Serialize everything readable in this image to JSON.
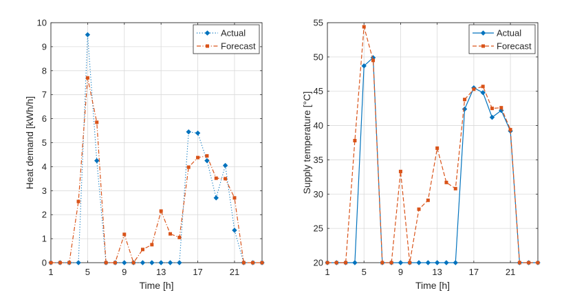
{
  "chart_data": [
    {
      "type": "line",
      "xlabel": "Time [h]",
      "ylabel": "Heat demand [kWh/h]",
      "xlim": [
        1,
        24
      ],
      "ylim": [
        0,
        10
      ],
      "xticks": [
        1,
        5,
        9,
        13,
        17,
        21
      ],
      "yticks": [
        0,
        1,
        2,
        3,
        4,
        5,
        6,
        7,
        8,
        9,
        10
      ],
      "grid": true,
      "legend": "top-right",
      "x": [
        1,
        2,
        3,
        4,
        5,
        6,
        7,
        8,
        9,
        10,
        11,
        12,
        13,
        14,
        15,
        16,
        17,
        18,
        19,
        20,
        21,
        22,
        23,
        24
      ],
      "series": [
        {
          "name": "Actual",
          "color": "#0072BD",
          "line_style": "dotted",
          "marker": "diamond",
          "values": [
            0,
            0,
            0,
            0,
            9.5,
            4.25,
            0,
            0,
            0,
            0,
            0,
            0,
            0,
            0,
            0,
            5.45,
            5.4,
            4.25,
            2.7,
            4.05,
            1.35,
            0,
            0,
            0
          ]
        },
        {
          "name": "Forecast",
          "color": "#D95319",
          "line_style": "dash-dot",
          "marker": "square",
          "values": [
            0,
            0,
            0,
            2.55,
            7.7,
            5.85,
            0,
            0,
            1.18,
            0,
            0.55,
            0.75,
            2.15,
            1.2,
            1.05,
            3.98,
            4.38,
            4.45,
            3.52,
            3.5,
            2.7,
            0,
            0,
            0
          ]
        }
      ]
    },
    {
      "type": "line",
      "xlabel": "Time [h]",
      "ylabel": "Supply temperature [°C]",
      "xlim": [
        1,
        24
      ],
      "ylim": [
        20,
        55
      ],
      "xticks": [
        1,
        5,
        9,
        13,
        17,
        21
      ],
      "yticks": [
        20,
        25,
        30,
        35,
        40,
        45,
        50,
        55
      ],
      "grid": true,
      "legend": "top-right",
      "x": [
        1,
        2,
        3,
        4,
        5,
        6,
        7,
        8,
        9,
        10,
        11,
        12,
        13,
        14,
        15,
        16,
        17,
        18,
        19,
        20,
        21,
        22,
        23,
        24
      ],
      "series": [
        {
          "name": "Actual",
          "color": "#0072BD",
          "line_style": "solid",
          "marker": "diamond",
          "values": [
            20,
            20,
            20,
            20,
            48.7,
            49.9,
            20,
            20,
            20,
            20,
            20,
            20,
            20,
            20,
            20,
            42.4,
            45.5,
            44.8,
            41.2,
            42.2,
            39.2,
            20,
            20,
            20
          ]
        },
        {
          "name": "Forecast",
          "color": "#D95319",
          "line_style": "dashed",
          "marker": "square",
          "values": [
            20,
            20,
            20,
            37.8,
            54.4,
            49.5,
            20,
            20,
            33.3,
            20,
            27.8,
            29.1,
            36.7,
            31.7,
            30.8,
            43.8,
            45.3,
            45.7,
            42.5,
            42.6,
            39.4,
            20,
            20,
            20
          ]
        }
      ]
    }
  ]
}
